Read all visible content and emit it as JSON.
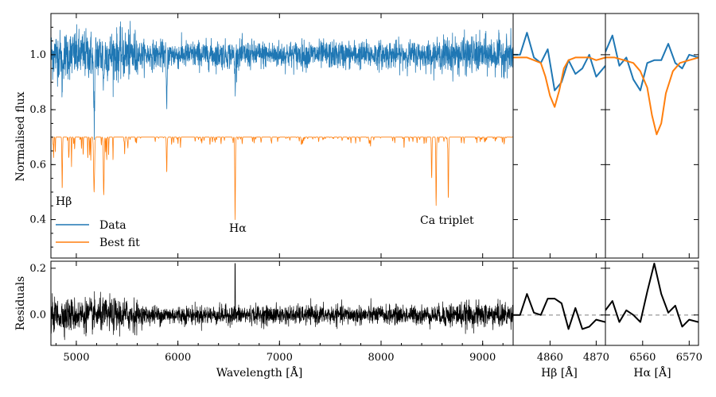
{
  "chart_data": [
    {
      "id": "full-spectrum",
      "type": "line",
      "xlabel": "",
      "ylabel": "Normalised flux",
      "xlim": [
        4750,
        9300
      ],
      "ylim": [
        0.26,
        1.15
      ],
      "yticks": [
        "0.4",
        "0.6",
        "0.8",
        "1.0"
      ],
      "ytick_values": [
        0.4,
        0.6,
        0.8,
        1.0
      ],
      "grid": false,
      "legend_position": "lower-left",
      "series": [
        {
          "name": "Data",
          "color": "#1f77b4",
          "baseline": 1.0,
          "noise": 0.05,
          "dips": [
            [
              5175,
              0.22,
              6
            ],
            [
              4861,
              0.1,
              4
            ],
            [
              5890,
              0.2,
              4
            ],
            [
              6563,
              0.1,
              4
            ],
            [
              5270,
              0.1,
              5
            ]
          ]
        },
        {
          "name": "Best fit",
          "color": "#ff7f0e",
          "baseline": 0.7,
          "noise": 0.0,
          "dips": [
            [
              4861,
              0.19,
              3
            ],
            [
              5175,
              0.2,
              5
            ],
            [
              5270,
              0.21,
              4
            ],
            [
              5890,
              0.13,
              3
            ],
            [
              6563,
              0.3,
              3
            ],
            [
              8498,
              0.15,
              3
            ],
            [
              8542,
              0.25,
              3
            ],
            [
              8662,
              0.22,
              3
            ]
          ]
        }
      ],
      "annotations": [
        "Hβ",
        "Hα",
        "Ca triplet"
      ]
    },
    {
      "id": "hbeta-zoom",
      "type": "line",
      "xlim": [
        4852,
        4872
      ],
      "ylim": [
        0.26,
        1.15
      ],
      "series": [
        {
          "name": "Data",
          "color": "#1f77b4",
          "x": [
            4852,
            4853.5,
            4855,
            4856.5,
            4858,
            4859.5,
            4861,
            4862.5,
            4864,
            4865.5,
            4867,
            4868.5,
            4870,
            4872
          ],
          "y": [
            1.0,
            1.0,
            1.08,
            0.99,
            0.97,
            1.02,
            0.87,
            0.9,
            0.98,
            0.93,
            0.95,
            1.0,
            0.92,
            0.96
          ]
        },
        {
          "name": "Best fit",
          "color": "#ff7f0e",
          "x": [
            4852,
            4853.5,
            4855,
            4856.5,
            4858,
            4859,
            4860,
            4861,
            4862,
            4863,
            4864,
            4865.5,
            4867,
            4868.5,
            4870,
            4872
          ],
          "y": [
            0.99,
            0.99,
            0.99,
            0.98,
            0.97,
            0.92,
            0.85,
            0.81,
            0.87,
            0.95,
            0.98,
            0.99,
            0.99,
            0.99,
            0.98,
            0.99
          ]
        }
      ]
    },
    {
      "id": "halpha-zoom",
      "type": "line",
      "xlim": [
        6552,
        6572
      ],
      "ylim": [
        0.26,
        1.15
      ],
      "series": [
        {
          "name": "Data",
          "color": "#1f77b4",
          "x": [
            6552,
            6553.5,
            6555,
            6556.5,
            6558,
            6559.5,
            6561,
            6562.5,
            6564,
            6565.5,
            6567,
            6568.5,
            6570,
            6572
          ],
          "y": [
            1.01,
            1.07,
            0.96,
            0.99,
            0.91,
            0.87,
            0.97,
            0.98,
            0.98,
            1.04,
            0.97,
            0.95,
            1.0,
            0.99
          ]
        },
        {
          "name": "Best fit",
          "color": "#ff7f0e",
          "x": [
            6552,
            6554,
            6556,
            6558,
            6559.5,
            6561,
            6562,
            6563,
            6564,
            6565,
            6566.5,
            6568,
            6570,
            6572
          ],
          "y": [
            0.99,
            0.99,
            0.98,
            0.97,
            0.94,
            0.88,
            0.78,
            0.71,
            0.75,
            0.86,
            0.94,
            0.97,
            0.98,
            0.99
          ]
        }
      ]
    },
    {
      "id": "residuals",
      "type": "line",
      "xlabel": "Wavelength [Å]",
      "ylabel": "Residuals",
      "xlim": [
        4750,
        9300
      ],
      "ylim": [
        -0.13,
        0.23
      ],
      "xticks": [
        "5000",
        "6000",
        "7000",
        "8000",
        "9000"
      ],
      "xtick_values": [
        5000,
        6000,
        7000,
        8000,
        9000
      ],
      "yticks": [
        "0.0",
        "0.2"
      ],
      "ytick_values": [
        0.0,
        0.2
      ],
      "series": [
        {
          "name": "",
          "color": "#000000",
          "baseline": 0.0,
          "noise": 0.04,
          "spike_at": 6563,
          "spike_value": 0.22
        }
      ]
    },
    {
      "id": "hbeta-residuals",
      "type": "line",
      "xlabel": "Hβ [Å]",
      "xlim": [
        4852,
        4872
      ],
      "ylim": [
        -0.13,
        0.23
      ],
      "xticks": [
        "4860",
        "4870"
      ],
      "xtick_values": [
        4860,
        4870
      ],
      "zero_line": true,
      "series": [
        {
          "name": "",
          "color": "#000000",
          "x": [
            4852,
            4853.5,
            4855,
            4856.5,
            4858,
            4859.5,
            4861,
            4862.5,
            4864,
            4865.5,
            4867,
            4868.5,
            4870,
            4872
          ],
          "y": [
            0.0,
            0.0,
            0.09,
            0.01,
            0.0,
            0.07,
            0.07,
            0.05,
            -0.06,
            0.03,
            -0.06,
            -0.05,
            -0.02,
            -0.03
          ]
        }
      ]
    },
    {
      "id": "halpha-residuals",
      "type": "line",
      "xlabel": "Hα [Å]",
      "xlim": [
        6552,
        6572
      ],
      "ylim": [
        -0.13,
        0.23
      ],
      "xticks": [
        "6560",
        "6570"
      ],
      "xtick_values": [
        6560,
        6570
      ],
      "zero_line": true,
      "series": [
        {
          "name": "",
          "color": "#000000",
          "x": [
            6552,
            6553.5,
            6555,
            6556.5,
            6558,
            6559.5,
            6561,
            6562.5,
            6564,
            6565.5,
            6567,
            6568.5,
            6570,
            6572
          ],
          "y": [
            0.02,
            0.06,
            -0.03,
            0.02,
            0.0,
            -0.03,
            0.1,
            0.22,
            0.09,
            0.01,
            0.04,
            -0.05,
            -0.02,
            -0.03
          ]
        }
      ]
    }
  ],
  "legend": {
    "data_label": "Data",
    "fit_label": "Best fit",
    "data_color": "#1f77b4",
    "fit_color": "#ff7f0e"
  },
  "annotations": {
    "hbeta": "Hβ",
    "halpha": "Hα",
    "ca_triplet": "Ca triplet"
  }
}
